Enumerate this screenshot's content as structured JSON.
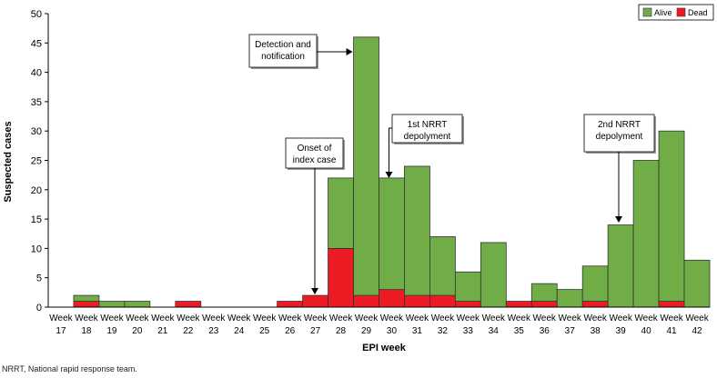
{
  "chart_data": {
    "type": "bar",
    "stacked": true,
    "categories": [
      "17",
      "18",
      "19",
      "20",
      "21",
      "22",
      "23",
      "24",
      "25",
      "26",
      "27",
      "28",
      "29",
      "30",
      "31",
      "32",
      "33",
      "34",
      "35",
      "36",
      "37",
      "38",
      "39",
      "40",
      "41",
      "42"
    ],
    "category_prefix": "Week",
    "series": [
      {
        "name": "Alive",
        "color": "#70ad47",
        "values": [
          0,
          1,
          1,
          1,
          0,
          0,
          0,
          0,
          0,
          0,
          0,
          12,
          44,
          19,
          22,
          10,
          5,
          11,
          0,
          3,
          3,
          6,
          14,
          25,
          29,
          8
        ]
      },
      {
        "name": "Dead",
        "color": "#ed1c24",
        "values": [
          0,
          1,
          0,
          0,
          0,
          1,
          0,
          0,
          0,
          1,
          2,
          10,
          2,
          3,
          2,
          2,
          1,
          0,
          1,
          1,
          0,
          1,
          0,
          0,
          1,
          0
        ]
      }
    ],
    "xlabel": "EPI week",
    "ylabel": "Suspected cases",
    "ylim": [
      0,
      50
    ],
    "yticks": [
      0,
      5,
      10,
      15,
      20,
      25,
      30,
      35,
      40,
      45,
      50
    ],
    "legend_position": "top-right",
    "grid": false,
    "annotations": [
      {
        "text": [
          "Detection and",
          "notification"
        ],
        "target_week": "29"
      },
      {
        "text": [
          "1st NRRT",
          "depolyment"
        ],
        "target_week": "30"
      },
      {
        "text": [
          "Onset of",
          "index case"
        ],
        "target_week": "27"
      },
      {
        "text": [
          "2nd NRRT",
          "depolyment"
        ],
        "target_week": "39"
      }
    ]
  },
  "footnote": "NRRT, National rapid response team."
}
